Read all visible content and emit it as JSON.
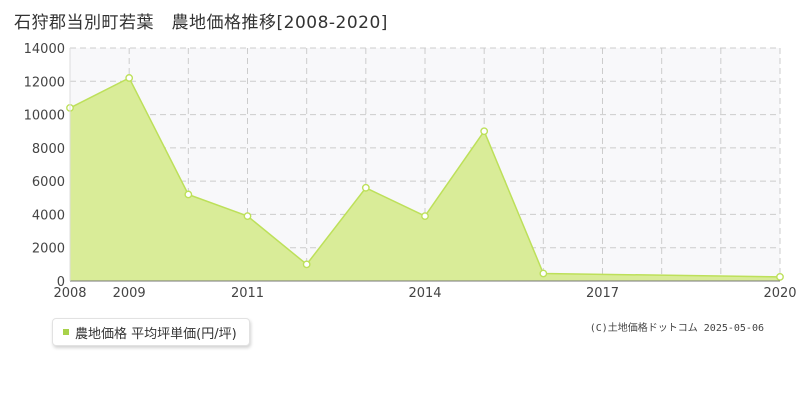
{
  "title": "石狩郡当別町若葉　農地価格推移[2008-2020]",
  "legend_label": "農地価格 平均坪単価(円/坪)",
  "copyright": "(C)土地価格ドットコム 2025-05-06",
  "colors": {
    "fill": "#d9ec98",
    "line": "#bde05a",
    "marker_stroke": "#bde05a",
    "grid": "#cccccc",
    "plot_bg": "#f8f8fa",
    "axis": "#777777"
  },
  "chart_data": {
    "type": "area",
    "x": [
      2008,
      2009,
      2010,
      2011,
      2012,
      2013,
      2014,
      2015,
      2016,
      2017,
      2018,
      2019,
      2020
    ],
    "x_tick_labels": [
      "2008",
      "2009",
      "2011",
      "2014",
      "2017",
      "2020"
    ],
    "series": [
      {
        "name": "農地価格 平均坪単価(円/坪)",
        "points": [
          {
            "x": 2008.0,
            "y": 10400
          },
          {
            "x": 2009.0,
            "y": 12200
          },
          {
            "x": 2010.0,
            "y": 5200
          },
          {
            "x": 2011.0,
            "y": 3900
          },
          {
            "x": 2012.0,
            "y": 1000
          },
          {
            "x": 2013.0,
            "y": 5600
          },
          {
            "x": 2014.0,
            "y": 3900
          },
          {
            "x": 2015.0,
            "y": 9000
          },
          {
            "x": 2016.0,
            "y": 450
          },
          {
            "x": 2020.0,
            "y": 250
          }
        ]
      }
    ],
    "ylim": [
      0,
      14000
    ],
    "y_ticks": [
      0,
      2000,
      4000,
      6000,
      8000,
      10000,
      12000,
      14000
    ],
    "grid": true,
    "legend_position": "bottom-left"
  }
}
